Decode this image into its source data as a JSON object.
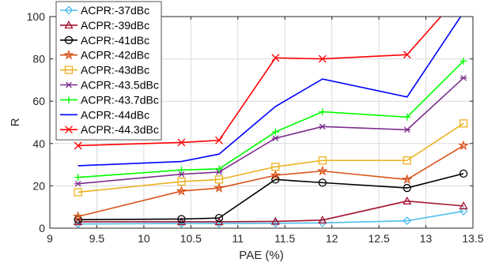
{
  "chart_data": {
    "type": "line",
    "xlabel": "PAE (%)",
    "ylabel": "R",
    "xlim": [
      9,
      13.5
    ],
    "ylim": [
      0,
      100
    ],
    "xticks": [
      "9",
      "9.5",
      "10",
      "10.5",
      "11",
      "11.5",
      "12",
      "12.5",
      "13",
      "13.5"
    ],
    "yticks": [
      "0",
      "20",
      "40",
      "60",
      "80",
      "100"
    ],
    "grid": true,
    "legend_position": "top-left",
    "x": [
      9.3,
      10.4,
      10.8,
      11.4,
      11.9,
      12.8,
      13.4
    ],
    "series": [
      {
        "name": "ACPR:-37dBc",
        "color": "#4dbeee",
        "marker": "diamond",
        "values": [
          2.0,
          2.2,
          2.2,
          2.3,
          2.5,
          3.5,
          8.0
        ]
      },
      {
        "name": "ACPR:-39dBc",
        "color": "#a2142f",
        "marker": "triangle",
        "values": [
          3.0,
          3.0,
          3.0,
          3.2,
          3.8,
          12.8,
          10.5
        ]
      },
      {
        "name": "ACPR:-41dBc",
        "color": "#000000",
        "marker": "circle",
        "values": [
          4.0,
          4.3,
          4.8,
          23.0,
          21.5,
          19.0,
          25.8
        ]
      },
      {
        "name": "ACPR:-42dBc",
        "color": "#d95319",
        "marker": "star",
        "values": [
          5.5,
          17.5,
          19.0,
          25.0,
          27.0,
          23.0,
          39.0
        ]
      },
      {
        "name": "ACPR:-43dBc",
        "color": "#edb120",
        "marker": "square",
        "values": [
          17.0,
          22.0,
          23.0,
          29.0,
          32.0,
          32.0,
          49.5
        ]
      },
      {
        "name": "ACPR:-43.5dBc",
        "color": "#7e2f8e",
        "marker": "asterisk",
        "values": [
          21.0,
          25.5,
          26.5,
          42.5,
          48.0,
          46.5,
          71.0
        ]
      },
      {
        "name": "ACPR:-43.7dBc",
        "color": "#00ff00",
        "marker": "plus",
        "values": [
          24.0,
          27.5,
          28.0,
          45.5,
          55.0,
          52.5,
          79.0
        ]
      },
      {
        "name": "ACPR:-44dBc",
        "color": "#0000ff",
        "marker": "none",
        "values": [
          29.5,
          31.5,
          35.0,
          57.5,
          70.5,
          62.0,
          102.0
        ]
      },
      {
        "name": "ACPR:-44.3dBc",
        "color": "#ff0000",
        "marker": "x",
        "values": [
          39.0,
          40.5,
          41.5,
          80.5,
          80.0,
          82.0,
          112.0
        ]
      }
    ]
  }
}
